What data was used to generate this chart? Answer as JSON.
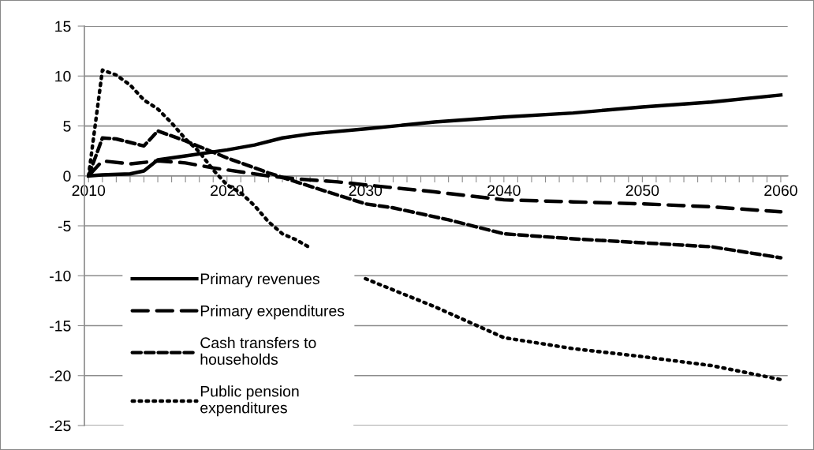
{
  "chart_data": {
    "type": "line",
    "series": [
      {
        "name": "Primary revenues",
        "color": "#000000",
        "line_style": "solid",
        "x": [
          2010,
          2011,
          2013,
          2014,
          2015,
          2017,
          2020,
          2022,
          2024,
          2026,
          2030,
          2035,
          2040,
          2045,
          2050,
          2055,
          2060
        ],
        "values": [
          0,
          0.1,
          0.2,
          0.5,
          1.6,
          2.0,
          2.6,
          3.1,
          3.8,
          4.2,
          4.7,
          5.4,
          5.9,
          6.3,
          6.9,
          7.4,
          8.1
        ]
      },
      {
        "name": "Primary expenditures",
        "color": "#000000",
        "line_style": "long dashed",
        "x": [
          2010,
          2011,
          2013,
          2015,
          2017,
          2019,
          2021,
          2023,
          2025,
          2028,
          2030,
          2035,
          2040,
          2045,
          2050,
          2055,
          2060
        ],
        "values": [
          0,
          1.5,
          1.2,
          1.5,
          1.3,
          0.8,
          0.4,
          0,
          -0.3,
          -0.6,
          -0.9,
          -1.6,
          -2.4,
          -2.6,
          -2.8,
          -3.1,
          -3.6
        ]
      },
      {
        "name": "Cash transfers to\nhouseholds",
        "color": "#000000",
        "line_style": "dashed",
        "x": [
          2010,
          2011,
          2012,
          2014,
          2015,
          2017,
          2020,
          2023,
          2025,
          2030,
          2032,
          2036,
          2038,
          2040,
          2045,
          2050,
          2055,
          2060
        ],
        "values": [
          0,
          3.8,
          3.7,
          3.0,
          4.5,
          3.5,
          1.8,
          0.3,
          -0.6,
          -2.8,
          -3.2,
          -4.4,
          -5.1,
          -5.8,
          -6.3,
          -6.7,
          -7.1,
          -8.2
        ]
      },
      {
        "name": "Public pension\nexpenditures",
        "color": "#000000",
        "line_style": "dotted",
        "x": [
          2010,
          2011,
          2012,
          2013,
          2014,
          2015,
          2016,
          2017,
          2018,
          2019,
          2020,
          2021,
          2022,
          2023,
          2024,
          2025,
          2026,
          2027,
          2028,
          2029,
          2030,
          2035,
          2040,
          2045,
          2050,
          2055,
          2060
        ],
        "values": [
          0,
          10.6,
          10.1,
          9.1,
          7.6,
          6.7,
          5.3,
          3.7,
          2.4,
          0.6,
          -0.9,
          -1.7,
          -3.0,
          -4.6,
          -5.8,
          -6.4,
          -7.2,
          null,
          null,
          null,
          -10.3,
          -13.1,
          -16.2,
          -17.3,
          -18.1,
          -19.0,
          -20.4
        ]
      }
    ],
    "xlim": [
      2009.7,
      2060.5
    ],
    "xticks": [
      2010,
      {
        "value": 2011,
        "label": null
      },
      {
        "value": 2012,
        "label": null
      },
      {
        "value": 2013,
        "label": null
      },
      {
        "value": 2014,
        "label": null
      },
      {
        "value": 2015,
        "label": null
      },
      {
        "value": 2016,
        "label": null
      },
      {
        "value": 2017,
        "label": null
      },
      {
        "value": 2018,
        "label": null
      },
      {
        "value": 2019,
        "label": null
      },
      2020,
      {
        "value": 2021,
        "label": null
      },
      {
        "value": 2022,
        "label": null
      },
      {
        "value": 2023,
        "label": null
      },
      {
        "value": 2024,
        "label": null
      },
      {
        "value": 2025,
        "label": null
      },
      {
        "value": 2026,
        "label": null
      },
      {
        "value": 2027,
        "label": null
      },
      {
        "value": 2028,
        "label": null
      },
      {
        "value": 2029,
        "label": null
      },
      2030,
      {
        "value": 2031,
        "label": null
      },
      {
        "value": 2032,
        "label": null
      },
      {
        "value": 2033,
        "label": null
      },
      {
        "value": 2034,
        "label": null
      },
      {
        "value": 2035,
        "label": null
      },
      {
        "value": 2036,
        "label": null
      },
      {
        "value": 2037,
        "label": null
      },
      {
        "value": 2038,
        "label": null
      },
      {
        "value": 2039,
        "label": null
      },
      2040,
      {
        "value": 2041,
        "label": null
      },
      {
        "value": 2042,
        "label": null
      },
      {
        "value": 2043,
        "label": null
      },
      {
        "value": 2044,
        "label": null
      },
      {
        "value": 2045,
        "label": null
      },
      {
        "value": 2046,
        "label": null
      },
      {
        "value": 2047,
        "label": null
      },
      {
        "value": 2048,
        "label": null
      },
      {
        "value": 2049,
        "label": null
      },
      2050,
      {
        "value": 2051,
        "label": null
      },
      {
        "value": 2052,
        "label": null
      },
      {
        "value": 2053,
        "label": null
      },
      {
        "value": 2054,
        "label": null
      },
      {
        "value": 2055,
        "label": null
      },
      {
        "value": 2056,
        "label": null
      },
      {
        "value": 2057,
        "label": null
      },
      {
        "value": 2058,
        "label": null
      },
      {
        "value": 2059,
        "label": null
      },
      2060
    ],
    "ylim": [
      -25,
      15
    ],
    "yticks": [
      -25,
      -20,
      -15,
      -10,
      -5,
      0,
      5,
      10,
      15
    ],
    "grid": "y",
    "legend": "bottom left",
    "marker": "none"
  }
}
